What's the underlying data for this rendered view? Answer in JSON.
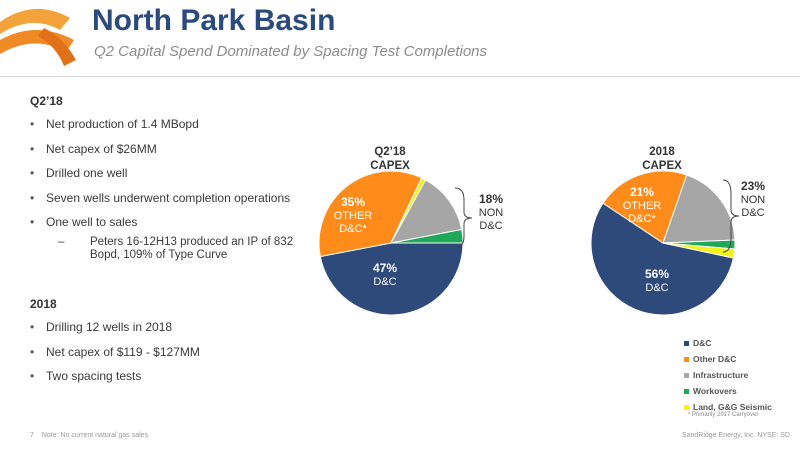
{
  "header": {
    "title": "North Park Basin",
    "subtitle": "Q2 Capital Spend Dominated by Spacing Test Completions"
  },
  "left": {
    "q2_heading": "Q2’18",
    "q2_bullets": [
      "Net production of 1.4 MBopd",
      "Net capex of $26MM",
      "Drilled one well",
      "Seven wells underwent completion operations",
      "One well to sales"
    ],
    "sub_dash": "–",
    "sub_bullet": "Peters 16-12H13 produced an IP of 832 Bopd, 109% of Type Curve",
    "y2018_heading": "2018",
    "y2018_bullets": [
      "Drilling 12 wells in 2018",
      "Net capex of $119 - $127MM",
      "Two spacing tests"
    ]
  },
  "colors": {
    "dc": "#2e4a7a",
    "other_dc": "#ff8c1a",
    "infrastructure": "#a6a6a6",
    "workovers": "#1fa85a",
    "land": "#f2f21a"
  },
  "chart_data": [
    {
      "type": "pie",
      "title": "Q2’18 CAPEX",
      "title_line1": "Q2’18",
      "title_line2": "CAPEX",
      "slices": [
        {
          "label": "D&C",
          "value": 47
        },
        {
          "label": "Other D&C",
          "value": 35
        },
        {
          "label": "Land, G&G Seismic",
          "value": 1
        },
        {
          "label": "Infrastructure",
          "value": 14
        },
        {
          "label": "Workovers",
          "value": 3
        }
      ],
      "annotations": {
        "dc_pct": "47%",
        "dc_label": "D&C",
        "other_pct": "35%",
        "other_line1": "OTHER",
        "other_line2": "D&C*",
        "non_pct": "18%",
        "non_line1": "NON",
        "non_line2": "D&C"
      }
    },
    {
      "type": "pie",
      "title": "2018 CAPEX",
      "title_line1": "2018",
      "title_line2": "CAPEX",
      "slices": [
        {
          "label": "D&C",
          "value": 56
        },
        {
          "label": "Other D&C",
          "value": 21
        },
        {
          "label": "Infrastructure",
          "value": 19
        },
        {
          "label": "Workovers",
          "value": 2
        },
        {
          "label": "Land, G&G Seismic",
          "value": 2
        }
      ],
      "annotations": {
        "dc_pct": "56%",
        "dc_label": "D&C",
        "other_pct": "21%",
        "other_line1": "OTHER",
        "other_line2": "D&C*",
        "non_pct": "23%",
        "non_line1": "NON",
        "non_line2": "D&C"
      }
    }
  ],
  "legend": {
    "items": [
      "D&C",
      "Other D&C",
      "Infrastructure",
      "Workovers",
      "Land, G&G Seismic"
    ],
    "footnote": "* Primarily 2017 Carryover"
  },
  "footer": {
    "page_number": "7",
    "note": "Note: No current natural gas sales",
    "company": "SandRidge Energy, Inc. NYSE: SD"
  }
}
